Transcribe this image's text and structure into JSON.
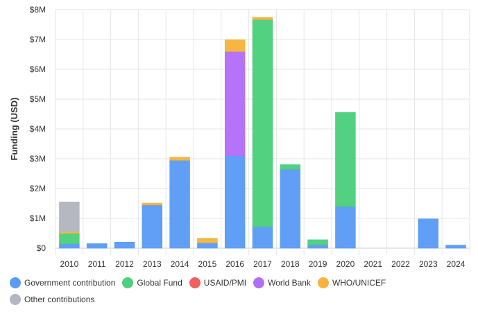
{
  "chart_data": {
    "type": "bar",
    "stacked": true,
    "categories": [
      "2010",
      "2011",
      "2012",
      "2013",
      "2014",
      "2015",
      "2016",
      "2017",
      "2018",
      "2019",
      "2020",
      "2021",
      "2022",
      "2023",
      "2024"
    ],
    "ylabel": "Funding (USD)",
    "xlabel": "",
    "ylim": [
      0,
      8000000
    ],
    "yticks": [
      0,
      1000000,
      2000000,
      3000000,
      4000000,
      5000000,
      6000000,
      7000000,
      8000000
    ],
    "ytick_labels": [
      "$0",
      "$1M",
      "$2M",
      "$3M",
      "$4M",
      "$5M",
      "$6M",
      "$7M",
      "$8M"
    ],
    "grid": true,
    "legend_position": "bottom-left",
    "series": [
      {
        "name": "Government contribution",
        "color": "#5b9cf5",
        "values": [
          150000,
          150000,
          200000,
          1450000,
          2950000,
          180000,
          3100000,
          720000,
          2650000,
          120000,
          1400000,
          0,
          0,
          980000,
          100000
        ]
      },
      {
        "name": "Global Fund",
        "color": "#4cd07d",
        "values": [
          350000,
          0,
          0,
          0,
          0,
          0,
          0,
          6950000,
          150000,
          160000,
          3150000,
          0,
          0,
          0,
          0
        ]
      },
      {
        "name": "USAID/PMI",
        "color": "#f0605d",
        "values": [
          0,
          0,
          0,
          0,
          0,
          0,
          0,
          0,
          0,
          0,
          0,
          0,
          0,
          0,
          0
        ]
      },
      {
        "name": "World Bank",
        "color": "#b36ef7",
        "values": [
          0,
          0,
          0,
          0,
          0,
          0,
          3500000,
          0,
          0,
          0,
          0,
          0,
          0,
          0,
          0
        ]
      },
      {
        "name": "WHO/UNICEF",
        "color": "#f7b33b",
        "values": [
          50000,
          0,
          0,
          60000,
          100000,
          150000,
          390000,
          70000,
          0,
          0,
          0,
          0,
          0,
          0,
          0
        ]
      },
      {
        "name": "Other contributions",
        "color": "#b3b6bf",
        "values": [
          1000000,
          0,
          0,
          0,
          0,
          0,
          0,
          0,
          0,
          0,
          0,
          0,
          0,
          0,
          0
        ]
      }
    ]
  }
}
